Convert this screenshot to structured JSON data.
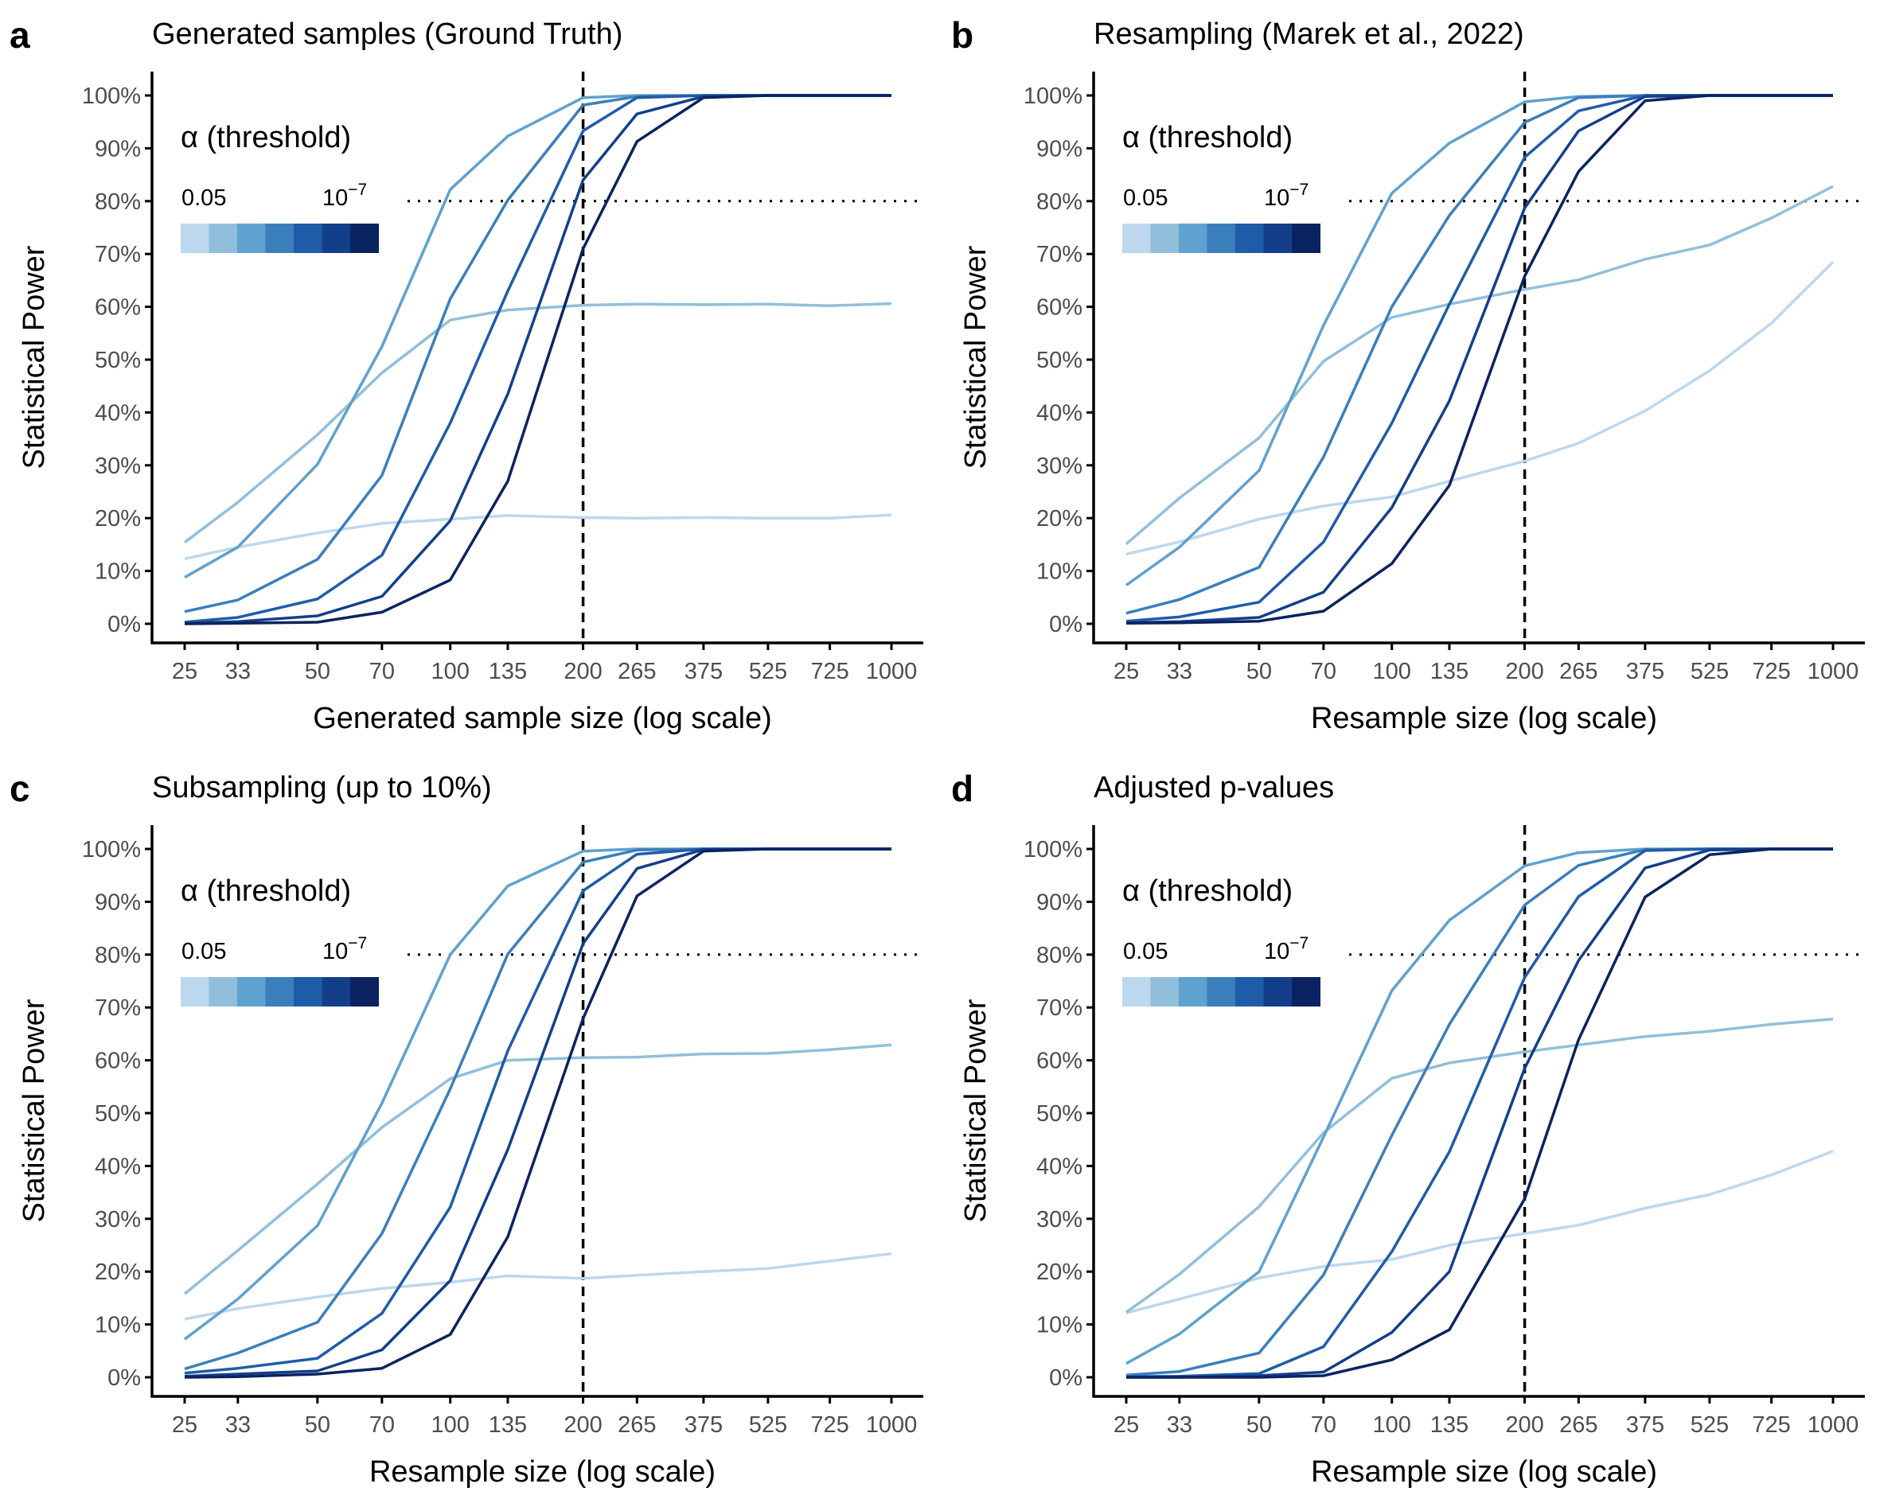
{
  "legend": {
    "title": "α (threshold)",
    "low_label": "0.05",
    "high_label_base": "10",
    "high_label_exp": "−7",
    "colors": [
      "#bdd7ee",
      "#91bfdb",
      "#5fa1cf",
      "#3a7fbc",
      "#1f5ca8",
      "#133f8a",
      "#0b2360"
    ]
  },
  "chart_data": [
    {
      "letter": "a",
      "title": "Generated samples (Ground Truth)",
      "type": "line",
      "xlabel": "Generated sample size (log scale)",
      "ylabel": "Statistical Power",
      "x_scale": "log",
      "x": [
        25,
        33,
        50,
        70,
        100,
        135,
        200,
        265,
        375,
        525,
        725,
        1000
      ],
      "ylim": [
        0,
        100
      ],
      "y_ticks": [
        "0%",
        "10%",
        "20%",
        "30%",
        "40%",
        "50%",
        "60%",
        "70%",
        "80%",
        "90%",
        "100%"
      ],
      "reference": {
        "vline_x": 200,
        "hline_y": 80
      },
      "series": [
        {
          "values": [
            12.3,
            14.5,
            17.2,
            19.0,
            19.8,
            20.5,
            20.1,
            20.0,
            20.1,
            20.0,
            20.0,
            20.6
          ]
        },
        {
          "values": [
            15.4,
            23.0,
            35.8,
            47.5,
            57.5,
            59.4,
            60.3,
            60.5,
            60.4,
            60.5,
            60.2,
            60.6
          ]
        },
        {
          "values": [
            8.8,
            14.5,
            30.2,
            52.5,
            82.2,
            92.3,
            99.6,
            100,
            100,
            100,
            100,
            100
          ]
        },
        {
          "values": [
            2.3,
            4.5,
            12.2,
            28.1,
            61.5,
            80.2,
            98.2,
            99.8,
            100,
            100,
            100,
            100
          ]
        },
        {
          "values": [
            0.3,
            1.2,
            4.7,
            13.0,
            38.0,
            63.0,
            93.3,
            99.6,
            100,
            100,
            100,
            100
          ]
        },
        {
          "values": [
            0.1,
            0.4,
            1.5,
            5.2,
            19.5,
            43.5,
            84.0,
            96.5,
            99.8,
            100,
            100,
            100
          ]
        },
        {
          "values": [
            0.0,
            0.1,
            0.3,
            2.2,
            8.3,
            27.0,
            71.0,
            91.3,
            99.6,
            100,
            100,
            100
          ]
        }
      ]
    },
    {
      "letter": "b",
      "title": "Resampling (Marek et al., 2022)",
      "type": "line",
      "xlabel": "Resample size (log scale)",
      "ylabel": "Statistical Power",
      "x_scale": "log",
      "x": [
        25,
        33,
        50,
        70,
        100,
        135,
        200,
        265,
        375,
        525,
        725,
        1000
      ],
      "ylim": [
        0,
        100
      ],
      "y_ticks": [
        "0%",
        "10%",
        "20%",
        "30%",
        "40%",
        "50%",
        "60%",
        "70%",
        "80%",
        "90%",
        "100%"
      ],
      "reference": {
        "vline_x": 200,
        "hline_y": 80
      },
      "series": [
        {
          "values": [
            13.2,
            15.5,
            19.8,
            22.3,
            24.0,
            27.0,
            30.8,
            34.2,
            40.3,
            47.9,
            56.9,
            68.5
          ]
        },
        {
          "values": [
            15.1,
            23.8,
            35.2,
            49.7,
            58.0,
            60.5,
            63.3,
            65.1,
            69.0,
            71.7,
            76.8,
            82.8
          ]
        },
        {
          "values": [
            7.3,
            14.5,
            29.0,
            56.5,
            81.5,
            91.0,
            98.8,
            99.8,
            100,
            100,
            100,
            100
          ]
        },
        {
          "values": [
            2.0,
            4.6,
            10.7,
            31.6,
            60.0,
            77.3,
            94.9,
            99.6,
            100,
            100,
            100,
            100
          ]
        },
        {
          "values": [
            0.5,
            1.3,
            4.1,
            15.5,
            38.0,
            60.5,
            88.3,
            97.1,
            100,
            100,
            100,
            100
          ]
        },
        {
          "values": [
            0.2,
            0.4,
            1.2,
            6.0,
            22.0,
            42.2,
            78.7,
            93.3,
            99.8,
            100,
            100,
            100
          ]
        },
        {
          "values": [
            0.1,
            0.2,
            0.5,
            2.4,
            11.4,
            26.2,
            65.8,
            85.6,
            99.0,
            100,
            100,
            100
          ]
        }
      ]
    },
    {
      "letter": "c",
      "title": "Subsampling (up to 10%)",
      "type": "line",
      "xlabel": "Resample size (log scale)",
      "ylabel": "Statistical Power",
      "x_scale": "log",
      "x": [
        25,
        33,
        50,
        70,
        100,
        135,
        200,
        265,
        375,
        525,
        725,
        1000
      ],
      "ylim": [
        0,
        100
      ],
      "y_ticks": [
        "0%",
        "10%",
        "20%",
        "30%",
        "40%",
        "50%",
        "60%",
        "70%",
        "80%",
        "90%",
        "100%"
      ],
      "reference": {
        "vline_x": 200,
        "hline_y": 80
      },
      "series": [
        {
          "values": [
            11.0,
            13.0,
            15.2,
            16.8,
            18.0,
            19.2,
            18.7,
            19.3,
            20.0,
            20.6,
            22.0,
            23.4
          ]
        },
        {
          "values": [
            15.8,
            24.0,
            36.6,
            47.3,
            56.5,
            60.0,
            60.5,
            60.6,
            61.2,
            61.3,
            62.0,
            62.9
          ]
        },
        {
          "values": [
            7.2,
            14.8,
            28.7,
            51.9,
            80.0,
            93.0,
            99.6,
            100,
            100,
            100,
            100,
            100
          ]
        },
        {
          "values": [
            1.6,
            4.6,
            10.4,
            27.2,
            54.6,
            80.1,
            97.5,
            99.8,
            100,
            100,
            100,
            100
          ]
        },
        {
          "values": [
            0.8,
            1.7,
            3.6,
            12.1,
            32.2,
            61.8,
            92.1,
            99.0,
            100,
            100,
            100,
            100
          ]
        },
        {
          "values": [
            0.2,
            0.6,
            1.2,
            5.2,
            18.3,
            43.1,
            82.1,
            96.3,
            99.9,
            100,
            100,
            100
          ]
        },
        {
          "values": [
            0.0,
            0.1,
            0.6,
            1.7,
            8.1,
            26.6,
            67.9,
            91.1,
            99.6,
            100,
            100,
            100
          ]
        }
      ]
    },
    {
      "letter": "d",
      "title": "Adjusted p-values",
      "type": "line",
      "xlabel": "Resample size (log scale)",
      "ylabel": "Statistical Power",
      "x_scale": "log",
      "x": [
        25,
        33,
        50,
        70,
        100,
        135,
        200,
        265,
        375,
        525,
        725,
        1000
      ],
      "ylim": [
        0,
        100
      ],
      "y_ticks": [
        "0%",
        "10%",
        "20%",
        "30%",
        "40%",
        "50%",
        "60%",
        "70%",
        "80%",
        "90%",
        "100%"
      ],
      "reference": {
        "vline_x": 200,
        "hline_y": 80
      },
      "series": [
        {
          "values": [
            12.2,
            14.8,
            18.8,
            21.0,
            22.3,
            25.0,
            27.2,
            28.8,
            32.0,
            34.6,
            38.3,
            42.8
          ]
        },
        {
          "values": [
            12.3,
            19.5,
            32.3,
            46.3,
            56.6,
            59.5,
            61.6,
            62.9,
            64.5,
            65.5,
            66.8,
            67.8
          ]
        },
        {
          "values": [
            2.6,
            8.2,
            20.0,
            45.5,
            73.2,
            86.5,
            96.8,
            99.3,
            100,
            100,
            100,
            100
          ]
        },
        {
          "values": [
            0.4,
            1.1,
            4.6,
            19.4,
            45.8,
            66.8,
            89.4,
            96.9,
            99.9,
            100,
            100,
            100
          ]
        },
        {
          "values": [
            0.1,
            0.2,
            0.7,
            5.8,
            23.8,
            42.7,
            75.7,
            91.0,
            99.7,
            100,
            100,
            100
          ]
        },
        {
          "values": [
            0.0,
            0.0,
            0.3,
            1.0,
            8.5,
            20.0,
            58.5,
            78.9,
            96.4,
            99.8,
            100,
            100
          ]
        },
        {
          "values": [
            0.0,
            0.0,
            0.0,
            0.3,
            3.3,
            9.0,
            33.8,
            63.9,
            90.9,
            98.9,
            100,
            100
          ]
        }
      ]
    }
  ]
}
